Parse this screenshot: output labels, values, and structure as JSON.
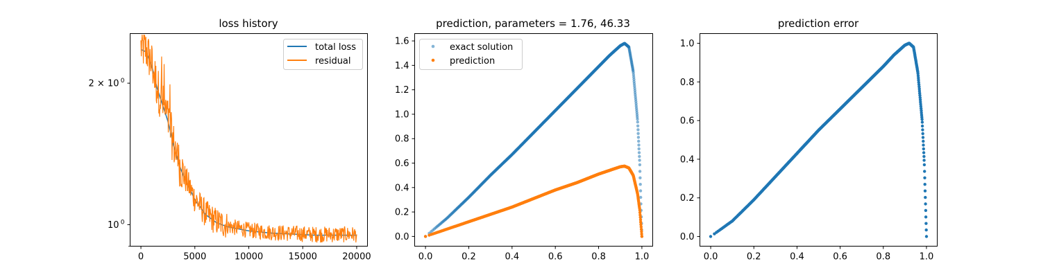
{
  "chart_data": [
    {
      "type": "line",
      "title": "loss history",
      "xlabel": "",
      "ylabel": "",
      "yscale": "log",
      "xlim": [
        -1000,
        21000
      ],
      "ylim": [
        0.9,
        2.55
      ],
      "x_ticks": [
        0,
        5000,
        10000,
        15000,
        20000
      ],
      "x_tick_labels": [
        "0",
        "5000",
        "10000",
        "15000",
        "20000"
      ],
      "y_ticks": [
        1.0,
        2.0
      ],
      "y_tick_labels": [
        "10",
        "2 × 10"
      ],
      "y_tick_exponent": "0",
      "grid": false,
      "legend_position": "upper right",
      "series": [
        {
          "name": "total loss",
          "color": "#1f77b4",
          "points": [
            [
              0,
              2.36
            ],
            [
              500,
              2.33
            ],
            [
              1000,
              2.18
            ],
            [
              1500,
              1.95
            ],
            [
              2000,
              1.8
            ],
            [
              2500,
              1.66
            ],
            [
              3000,
              1.48
            ],
            [
              3500,
              1.35
            ],
            [
              4000,
              1.26
            ],
            [
              5000,
              1.13
            ],
            [
              6000,
              1.05
            ],
            [
              7000,
              1.01
            ],
            [
              8000,
              0.99
            ],
            [
              10000,
              0.97
            ],
            [
              12000,
              0.96
            ],
            [
              14000,
              0.955
            ],
            [
              16000,
              0.95
            ],
            [
              18000,
              0.95
            ],
            [
              20000,
              0.95
            ]
          ]
        },
        {
          "name": "residual",
          "color": "#ff7f0e",
          "points": [
            [
              0,
              2.36
            ],
            [
              500,
              2.33
            ],
            [
              1000,
              2.18
            ],
            [
              1500,
              1.95
            ],
            [
              2000,
              1.8
            ],
            [
              2500,
              1.66
            ],
            [
              3000,
              1.48
            ],
            [
              3500,
              1.35
            ],
            [
              4000,
              1.26
            ],
            [
              5000,
              1.13
            ],
            [
              6000,
              1.05
            ],
            [
              7000,
              1.01
            ],
            [
              8000,
              0.99
            ],
            [
              10000,
              0.97
            ],
            [
              12000,
              0.96
            ],
            [
              14000,
              0.955
            ],
            [
              16000,
              0.95
            ],
            [
              18000,
              0.95
            ],
            [
              20000,
              0.95
            ]
          ]
        }
      ]
    },
    {
      "type": "scatter",
      "title": "prediction, parameters = 1.76, 46.33",
      "xlabel": "",
      "ylabel": "",
      "xlim": [
        -0.05,
        1.05
      ],
      "ylim": [
        -0.08,
        1.66
      ],
      "x_ticks": [
        0.0,
        0.2,
        0.4,
        0.6,
        0.8,
        1.0
      ],
      "x_tick_labels": [
        "0.0",
        "0.2",
        "0.4",
        "0.6",
        "0.8",
        "1.0"
      ],
      "y_ticks": [
        0.0,
        0.2,
        0.4,
        0.6,
        0.8,
        1.0,
        1.2,
        1.4,
        1.6
      ],
      "y_tick_labels": [
        "0.0",
        "0.2",
        "0.4",
        "0.6",
        "0.8",
        "1.0",
        "1.2",
        "1.4",
        "1.6"
      ],
      "grid": false,
      "legend_position": "upper left",
      "series": [
        {
          "name": "exact solution",
          "color": "#1f77b4",
          "points": [
            [
              0.0,
              0.0
            ],
            [
              0.1,
              0.15
            ],
            [
              0.2,
              0.32
            ],
            [
              0.3,
              0.5
            ],
            [
              0.4,
              0.67
            ],
            [
              0.5,
              0.85
            ],
            [
              0.6,
              1.03
            ],
            [
              0.7,
              1.21
            ],
            [
              0.8,
              1.39
            ],
            [
              0.85,
              1.48
            ],
            [
              0.9,
              1.56
            ],
            [
              0.92,
              1.58
            ],
            [
              0.94,
              1.55
            ],
            [
              0.96,
              1.35
            ],
            [
              0.98,
              0.95
            ],
            [
              0.99,
              0.6
            ],
            [
              1.0,
              0.0
            ]
          ]
        },
        {
          "name": "prediction",
          "color": "#ff7f0e",
          "points": [
            [
              0.0,
              0.0
            ],
            [
              0.1,
              0.06
            ],
            [
              0.2,
              0.12
            ],
            [
              0.3,
              0.18
            ],
            [
              0.4,
              0.24
            ],
            [
              0.5,
              0.31
            ],
            [
              0.6,
              0.38
            ],
            [
              0.7,
              0.44
            ],
            [
              0.8,
              0.51
            ],
            [
              0.85,
              0.54
            ],
            [
              0.9,
              0.57
            ],
            [
              0.92,
              0.575
            ],
            [
              0.94,
              0.56
            ],
            [
              0.96,
              0.5
            ],
            [
              0.98,
              0.35
            ],
            [
              0.99,
              0.22
            ],
            [
              1.0,
              0.0
            ]
          ]
        }
      ]
    },
    {
      "type": "scatter",
      "title": "prediction error",
      "xlabel": "",
      "ylabel": "",
      "xlim": [
        -0.05,
        1.05
      ],
      "ylim": [
        -0.05,
        1.05
      ],
      "x_ticks": [
        0.0,
        0.2,
        0.4,
        0.6,
        0.8,
        1.0
      ],
      "x_tick_labels": [
        "0.0",
        "0.2",
        "0.4",
        "0.6",
        "0.8",
        "1.0"
      ],
      "y_ticks": [
        0.0,
        0.2,
        0.4,
        0.6,
        0.8,
        1.0
      ],
      "y_tick_labels": [
        "0.0",
        "0.2",
        "0.4",
        "0.6",
        "0.8",
        "1.0"
      ],
      "grid": false,
      "series": [
        {
          "color": "#1f77b4",
          "points": [
            [
              0.0,
              0.0
            ],
            [
              0.1,
              0.08
            ],
            [
              0.2,
              0.19
            ],
            [
              0.3,
              0.31
            ],
            [
              0.4,
              0.43
            ],
            [
              0.5,
              0.55
            ],
            [
              0.6,
              0.66
            ],
            [
              0.7,
              0.77
            ],
            [
              0.8,
              0.88
            ],
            [
              0.85,
              0.94
            ],
            [
              0.9,
              0.99
            ],
            [
              0.92,
              1.0
            ],
            [
              0.94,
              0.98
            ],
            [
              0.96,
              0.85
            ],
            [
              0.98,
              0.6
            ],
            [
              0.99,
              0.38
            ],
            [
              1.0,
              0.0
            ]
          ]
        }
      ]
    }
  ]
}
